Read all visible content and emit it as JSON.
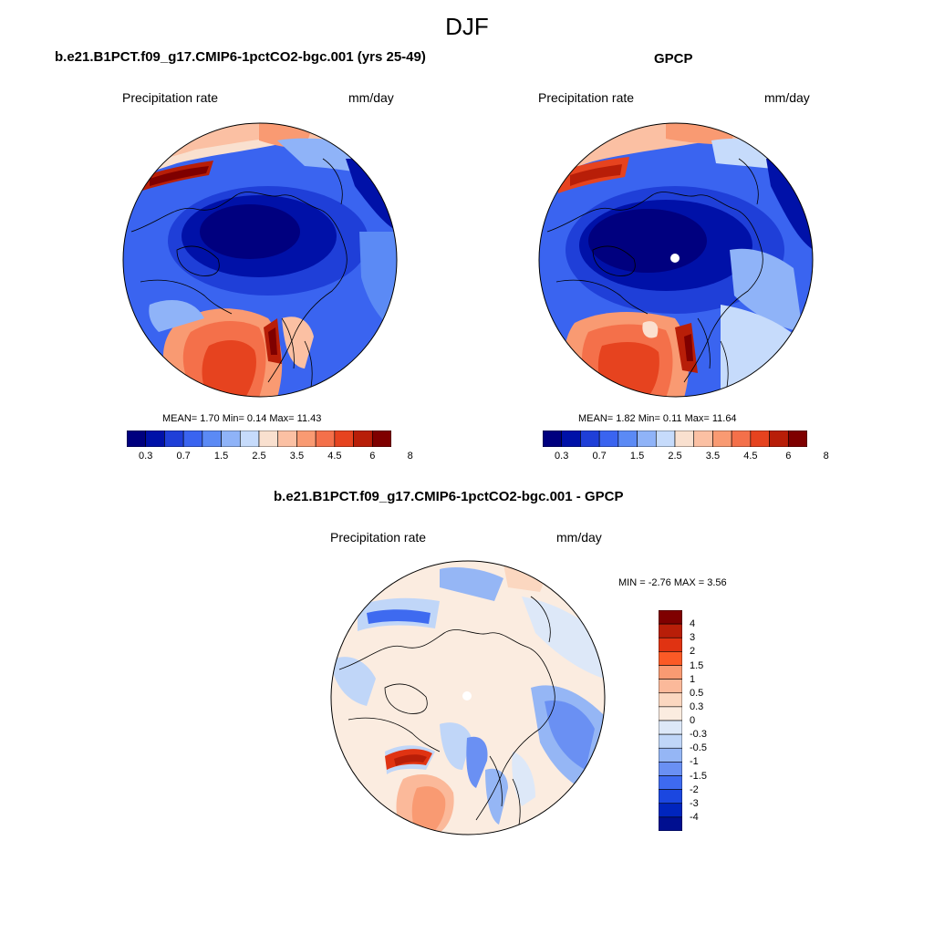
{
  "figure": {
    "title": "DJF"
  },
  "panels": {
    "model": {
      "title": "b.e21.B1PCT.f09_g17.CMIP6-1pctCO2-bgc.001 (yrs 25-49)",
      "variable": "Precipitation rate",
      "units": "mm/day",
      "stats": "MEAN=   1.70  Min=   0.14  Max=  11.43"
    },
    "obs": {
      "title": "GPCP",
      "variable": "Precipitation rate",
      "units": "mm/day",
      "stats": "MEAN=   1.82  Min=   0.11  Max=  11.64"
    },
    "diff": {
      "title": "b.e21.B1PCT.f09_g17.CMIP6-1pctCO2-bgc.001 - GPCP",
      "variable": "Precipitation rate",
      "units": "mm/day",
      "stats": "MIN =  -2.76 MAX =   3.56"
    }
  },
  "colorbars": {
    "precip": {
      "colors": [
        "#00007f",
        "#0011a8",
        "#1f3fd8",
        "#3a64f0",
        "#5b8af5",
        "#8fb3f8",
        "#c6dbfb",
        "#f9e0cf",
        "#fbc0a3",
        "#f99a72",
        "#f4704a",
        "#e6431f",
        "#b81e08",
        "#7f0000"
      ],
      "labels": [
        "0.3",
        "0.7",
        "1.5",
        "2.5",
        "3.5",
        "4.5",
        "6",
        "8"
      ]
    },
    "diff": {
      "colors": [
        "#7f0000",
        "#b81e08",
        "#e03312",
        "#fb5a26",
        "#f99a72",
        "#fbb99a",
        "#fbd7c0",
        "#fbece0",
        "#dde8f8",
        "#c0d6f8",
        "#95b6f5",
        "#6a90f3",
        "#3e6af0",
        "#1b47e0",
        "#0025be",
        "#000f90"
      ],
      "labels": [
        "4",
        "3",
        "2",
        "1.5",
        "1",
        "0.5",
        "0.3",
        "0",
        "-0.3",
        "-0.5",
        "-1",
        "-1.5",
        "-2",
        "-3",
        "-4"
      ]
    }
  }
}
